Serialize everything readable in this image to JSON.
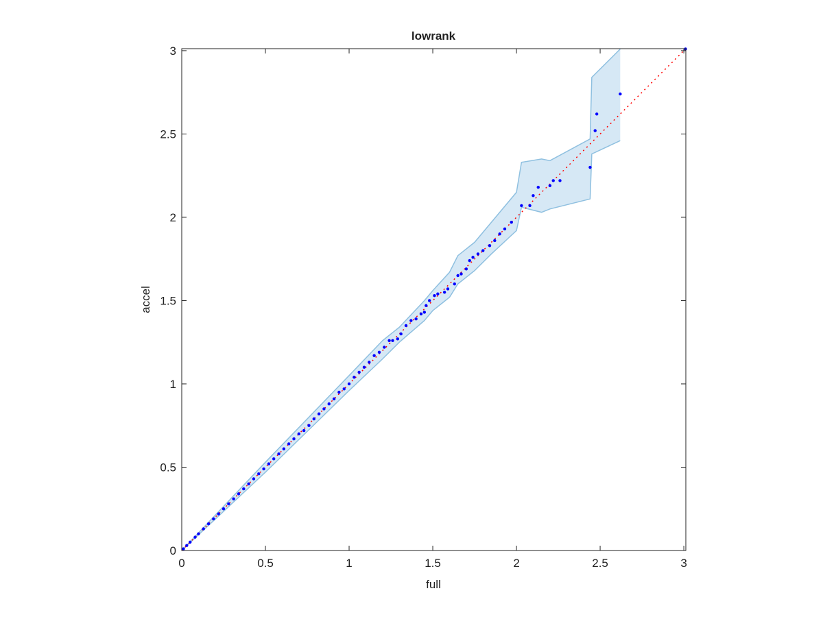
{
  "chart_data": {
    "type": "scatter",
    "title": "lowrank",
    "xlabel": "full",
    "ylabel": "accel",
    "xlim": [
      0,
      3.012
    ],
    "ylim": [
      0,
      3.012
    ],
    "xticks": [
      0,
      0.5,
      1,
      1.5,
      2,
      2.5,
      3
    ],
    "yticks": [
      0,
      0.5,
      1,
      1.5,
      2,
      2.5,
      3
    ],
    "band": {
      "color": "#8fc0e0",
      "fill": "#d6e8f5",
      "x": [
        0,
        0.5,
        1.0,
        1.2,
        1.3,
        1.45,
        1.5,
        1.6,
        1.65,
        1.75,
        1.85,
        2.0,
        2.03,
        2.15,
        2.2,
        2.44,
        2.45,
        2.62
      ],
      "upper": [
        0,
        0.53,
        1.05,
        1.26,
        1.34,
        1.5,
        1.56,
        1.67,
        1.77,
        1.85,
        1.97,
        2.15,
        2.33,
        2.35,
        2.34,
        2.47,
        2.84,
        3.01
      ],
      "lower": [
        0,
        0.47,
        0.96,
        1.15,
        1.25,
        1.38,
        1.44,
        1.52,
        1.6,
        1.68,
        1.78,
        1.92,
        2.06,
        2.03,
        2.05,
        2.11,
        2.38,
        2.46
      ]
    },
    "reference_line": {
      "color": "#ff0000",
      "x": [
        0,
        3.01
      ],
      "y": [
        0,
        3.01
      ]
    },
    "points": {
      "color": "#0000ff",
      "x": [
        0.01,
        0.03,
        0.05,
        0.08,
        0.1,
        0.13,
        0.16,
        0.19,
        0.22,
        0.25,
        0.28,
        0.31,
        0.34,
        0.37,
        0.4,
        0.43,
        0.46,
        0.49,
        0.52,
        0.55,
        0.58,
        0.61,
        0.64,
        0.67,
        0.7,
        0.73,
        0.76,
        0.79,
        0.82,
        0.85,
        0.88,
        0.91,
        0.94,
        0.97,
        1.0,
        1.03,
        1.06,
        1.09,
        1.12,
        1.15,
        1.18,
        1.21,
        1.24,
        1.26,
        1.29,
        1.31,
        1.34,
        1.37,
        1.4,
        1.43,
        1.45,
        1.46,
        1.48,
        1.51,
        1.53,
        1.57,
        1.59,
        1.63,
        1.65,
        1.67,
        1.7,
        1.72,
        1.74,
        1.77,
        1.8,
        1.84,
        1.87,
        1.9,
        1.93,
        1.97,
        2.03,
        2.08,
        2.1,
        2.13,
        2.2,
        2.22,
        2.26,
        2.44,
        2.47,
        2.48,
        2.62,
        3.01
      ],
      "y": [
        0.01,
        0.03,
        0.05,
        0.08,
        0.1,
        0.13,
        0.16,
        0.19,
        0.22,
        0.25,
        0.28,
        0.31,
        0.34,
        0.37,
        0.4,
        0.43,
        0.46,
        0.49,
        0.52,
        0.55,
        0.58,
        0.61,
        0.64,
        0.67,
        0.7,
        0.72,
        0.75,
        0.79,
        0.82,
        0.85,
        0.88,
        0.91,
        0.95,
        0.97,
        1.0,
        1.04,
        1.07,
        1.1,
        1.13,
        1.17,
        1.19,
        1.22,
        1.26,
        1.26,
        1.27,
        1.3,
        1.35,
        1.38,
        1.39,
        1.42,
        1.43,
        1.47,
        1.5,
        1.53,
        1.54,
        1.55,
        1.57,
        1.6,
        1.65,
        1.66,
        1.69,
        1.74,
        1.76,
        1.78,
        1.8,
        1.83,
        1.86,
        1.9,
        1.93,
        1.97,
        2.07,
        2.07,
        2.13,
        2.18,
        2.19,
        2.22,
        2.22,
        2.3,
        2.52,
        2.62,
        2.74,
        3.01
      ]
    }
  }
}
